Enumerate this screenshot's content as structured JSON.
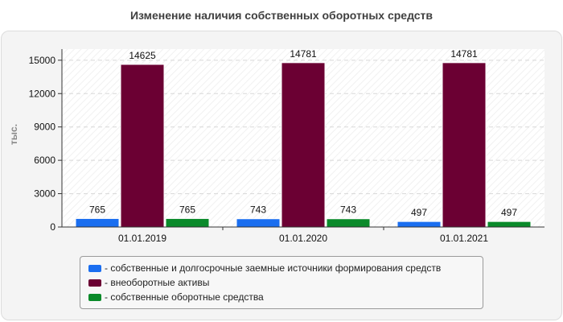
{
  "chart_data": {
    "type": "bar",
    "title": "Изменение наличия собственных оборотных средств",
    "ylabel": "тыс.",
    "xlabel": "",
    "ylim": [
      0,
      16000
    ],
    "yticks": [
      0,
      3000,
      6000,
      9000,
      12000,
      15000
    ],
    "grid": true,
    "legend_position": "bottom",
    "categories": [
      "01.01.2019",
      "01.01.2020",
      "01.01.2021"
    ],
    "series": [
      {
        "name": "- собственные и долгосрочные заемные источники формирования средств",
        "color": "#1a6ef0",
        "values": [
          765,
          743,
          497
        ]
      },
      {
        "name": "- внеоборотные активы",
        "color": "#6b0033",
        "values": [
          14625,
          14781,
          14781
        ]
      },
      {
        "name": "- собственные оборотные средства",
        "color": "#0a8a2a",
        "values": [
          765,
          743,
          497
        ]
      }
    ]
  }
}
